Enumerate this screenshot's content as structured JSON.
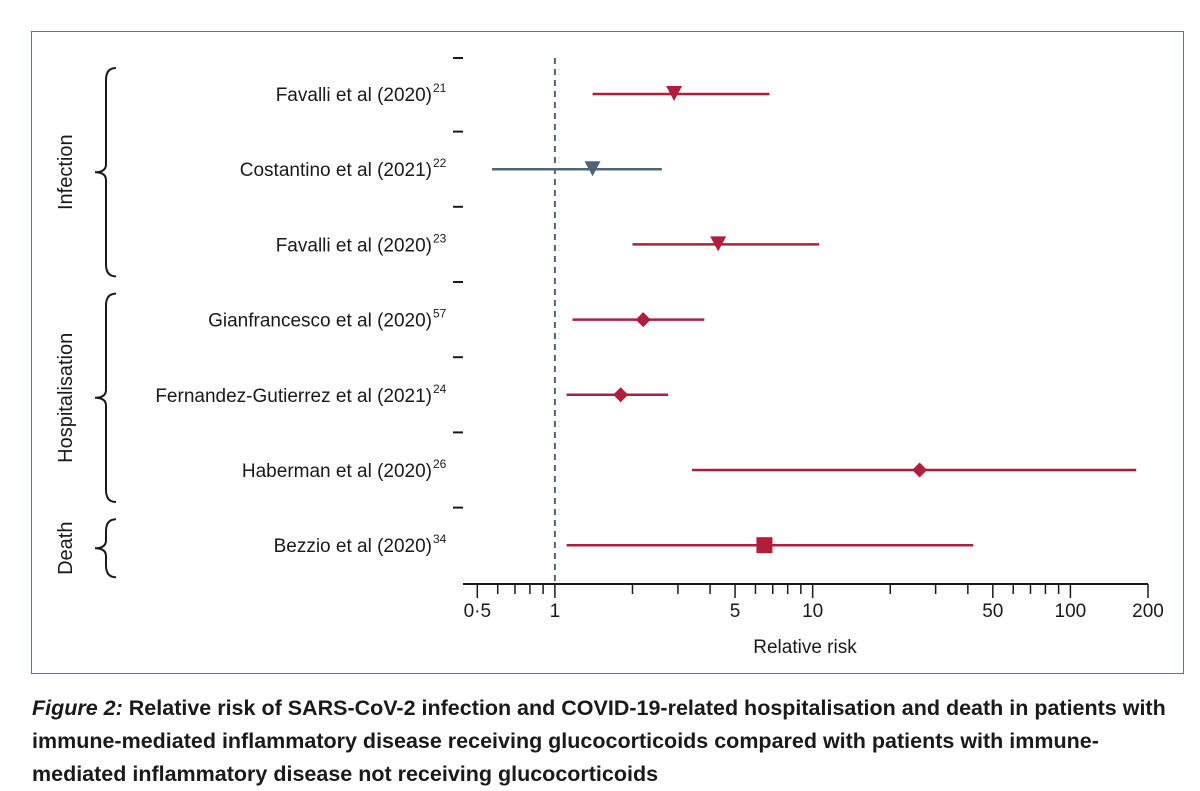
{
  "chart_data": {
    "type": "forest",
    "xlabel": "Relative risk",
    "xscale": "log",
    "xlim": [
      0.44,
      200
    ],
    "reference_line": 1,
    "major_ticks": [
      0.5,
      1,
      5,
      10,
      50,
      100,
      200
    ],
    "major_tick_labels": [
      "0·5",
      "1",
      "5",
      "10",
      "50",
      "100",
      "200"
    ],
    "minor_ticks": [
      0.6,
      0.7,
      0.8,
      0.9,
      2,
      3,
      4,
      6,
      7,
      8,
      9,
      20,
      30,
      40,
      60,
      70,
      80,
      90
    ],
    "groups": [
      {
        "name": "Infection",
        "rows": [
          0,
          1,
          2
        ]
      },
      {
        "name": "Hospitalisation",
        "rows": [
          3,
          4,
          5
        ]
      },
      {
        "name": "Death",
        "rows": [
          6
        ]
      }
    ],
    "studies": [
      {
        "label": "Favalli et al (2020)",
        "ref": "21",
        "estimate": 2.9,
        "ci_low": 1.4,
        "ci_high": 6.8,
        "marker": "triangle",
        "color": "#b01e3c"
      },
      {
        "label": "Costantino et al (2021)",
        "ref": "22",
        "estimate": 1.4,
        "ci_low": 0.57,
        "ci_high": 2.6,
        "marker": "triangle",
        "color": "#4e6477"
      },
      {
        "label": "Favalli et al (2020)",
        "ref": "23",
        "estimate": 4.3,
        "ci_low": 2.0,
        "ci_high": 10.6,
        "marker": "triangle",
        "color": "#b01e3c"
      },
      {
        "label": "Gianfrancesco et al (2020)",
        "ref": "57",
        "estimate": 2.2,
        "ci_low": 1.17,
        "ci_high": 3.8,
        "marker": "diamond",
        "color": "#b01e3c"
      },
      {
        "label": "Fernandez-Gutierrez et al (2021)",
        "ref": "24",
        "estimate": 1.8,
        "ci_low": 1.11,
        "ci_high": 2.75,
        "marker": "diamond",
        "color": "#b01e3c"
      },
      {
        "label": "Haberman et al (2020)",
        "ref": "26",
        "estimate": 26,
        "ci_low": 3.4,
        "ci_high": 180,
        "marker": "diamond",
        "color": "#b01e3c"
      },
      {
        "label": "Bezzio et al (2020)",
        "ref": "34",
        "estimate": 6.5,
        "ci_low": 1.11,
        "ci_high": 42,
        "marker": "square",
        "color": "#b01e3c"
      }
    ]
  },
  "caption": {
    "label": "Figure 2:",
    "text": "Relative risk of SARS-CoV-2 infection and COVID-19-related hospitalisation and death in patients with immune-mediated inflammatory disease receiving glucocorticoids compared with patients with immune-mediated inflammatory disease not receiving glucocorticoids"
  }
}
